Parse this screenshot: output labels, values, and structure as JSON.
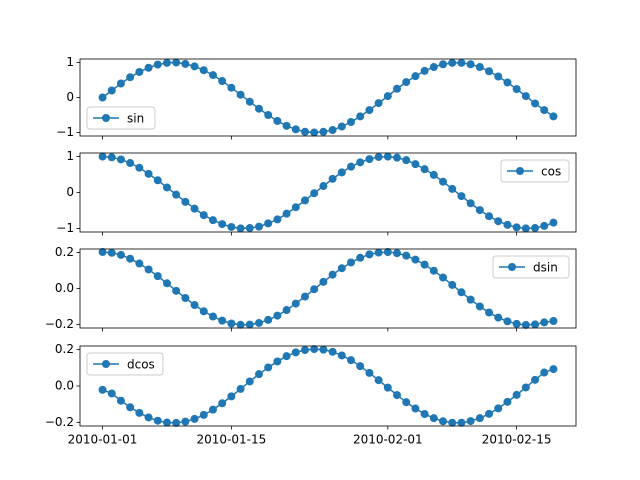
{
  "chart_data": [
    {
      "type": "line",
      "legend": "lower left",
      "x": [
        "2010-01-01",
        "2010-01-02",
        "2010-01-03",
        "2010-01-04",
        "2010-01-05",
        "2010-01-06",
        "2010-01-07",
        "2010-01-08",
        "2010-01-09",
        "2010-01-10",
        "2010-01-11",
        "2010-01-12",
        "2010-01-13",
        "2010-01-14",
        "2010-01-15",
        "2010-01-16",
        "2010-01-17",
        "2010-01-18",
        "2010-01-19",
        "2010-01-20",
        "2010-01-21",
        "2010-01-22",
        "2010-01-23",
        "2010-01-24",
        "2010-01-25",
        "2010-01-26",
        "2010-01-27",
        "2010-01-28",
        "2010-01-29",
        "2010-01-30",
        "2010-01-31",
        "2010-02-01",
        "2010-02-02",
        "2010-02-03",
        "2010-02-04",
        "2010-02-05",
        "2010-02-06",
        "2010-02-07",
        "2010-02-08",
        "2010-02-09",
        "2010-02-10",
        "2010-02-11",
        "2010-02-12",
        "2010-02-13",
        "2010-02-14",
        "2010-02-15",
        "2010-02-16",
        "2010-02-17",
        "2010-02-18",
        "2010-02-19"
      ],
      "xlim": [
        "2009-12-29T13:12:00Z",
        "2010-02-21T10:48:00Z"
      ],
      "xticks": [
        "2010-01-01",
        "2010-01-15",
        "2010-02-01",
        "2010-02-15"
      ],
      "ylim": [
        -1.1,
        1.1
      ],
      "yticks": [
        {
          "value": -1,
          "label": "−1"
        },
        0,
        1
      ],
      "series": [
        {
          "name": "sin",
          "color": "#1f77b4",
          "values": [
            0,
            0.2,
            0.4,
            0.58,
            0.73,
            0.85,
            0.94,
            0.99,
            1.0,
            0.96,
            0.89,
            0.78,
            0.64,
            0.47,
            0.28,
            0.08,
            -0.12,
            -0.32,
            -0.5,
            -0.67,
            -0.81,
            -0.91,
            -0.98,
            -1.0,
            -0.98,
            -0.93,
            -0.83,
            -0.7,
            -0.54,
            -0.36,
            -0.16,
            0.04,
            0.25,
            0.44,
            0.61,
            0.76,
            0.87,
            0.95,
            0.99,
            0.99,
            0.95,
            0.87,
            0.75,
            0.6,
            0.43,
            0.24,
            0.04,
            -0.17,
            -0.36,
            -0.54
          ]
        }
      ]
    },
    {
      "type": "line",
      "legend": "upper right",
      "x": [
        "2010-01-01",
        "2010-01-02",
        "2010-01-03",
        "2010-01-04",
        "2010-01-05",
        "2010-01-06",
        "2010-01-07",
        "2010-01-08",
        "2010-01-09",
        "2010-01-10",
        "2010-01-11",
        "2010-01-12",
        "2010-01-13",
        "2010-01-14",
        "2010-01-15",
        "2010-01-16",
        "2010-01-17",
        "2010-01-18",
        "2010-01-19",
        "2010-01-20",
        "2010-01-21",
        "2010-01-22",
        "2010-01-23",
        "2010-01-24",
        "2010-01-25",
        "2010-01-26",
        "2010-01-27",
        "2010-01-28",
        "2010-01-29",
        "2010-01-30",
        "2010-01-31",
        "2010-02-01",
        "2010-02-02",
        "2010-02-03",
        "2010-02-04",
        "2010-02-05",
        "2010-02-06",
        "2010-02-07",
        "2010-02-08",
        "2010-02-09",
        "2010-02-10",
        "2010-02-11",
        "2010-02-12",
        "2010-02-13",
        "2010-02-14",
        "2010-02-15",
        "2010-02-16",
        "2010-02-17",
        "2010-02-18",
        "2010-02-19"
      ],
      "xlim": [
        "2009-12-29T13:12:00Z",
        "2010-02-21T10:48:00Z"
      ],
      "xticks": [
        "2010-01-01",
        "2010-01-15",
        "2010-02-01",
        "2010-02-15"
      ],
      "ylim": [
        -1.1,
        1.1
      ],
      "yticks": [
        {
          "value": -1,
          "label": "−1"
        },
        0,
        1
      ],
      "series": [
        {
          "name": "cos",
          "color": "#1f77b4",
          "values": [
            1,
            0.98,
            0.92,
            0.82,
            0.69,
            0.52,
            0.34,
            0.14,
            -0.06,
            -0.26,
            -0.45,
            -0.63,
            -0.77,
            -0.88,
            -0.96,
            -1.0,
            -0.99,
            -0.95,
            -0.86,
            -0.75,
            -0.59,
            -0.41,
            -0.22,
            -0.02,
            0.18,
            0.38,
            0.56,
            0.72,
            0.84,
            0.93,
            0.99,
            1.0,
            0.97,
            0.9,
            0.79,
            0.65,
            0.49,
            0.3,
            0.1,
            -0.1,
            -0.3,
            -0.49,
            -0.66,
            -0.8,
            -0.9,
            -0.97,
            -1.0,
            -0.99,
            -0.93,
            -0.84
          ]
        }
      ]
    },
    {
      "type": "line",
      "legend": "upper right",
      "x": [
        "2010-01-01",
        "2010-01-02",
        "2010-01-03",
        "2010-01-04",
        "2010-01-05",
        "2010-01-06",
        "2010-01-07",
        "2010-01-08",
        "2010-01-09",
        "2010-01-10",
        "2010-01-11",
        "2010-01-12",
        "2010-01-13",
        "2010-01-14",
        "2010-01-15",
        "2010-01-16",
        "2010-01-17",
        "2010-01-18",
        "2010-01-19",
        "2010-01-20",
        "2010-01-21",
        "2010-01-22",
        "2010-01-23",
        "2010-01-24",
        "2010-01-25",
        "2010-01-26",
        "2010-01-27",
        "2010-01-28",
        "2010-01-29",
        "2010-01-30",
        "2010-01-31",
        "2010-02-01",
        "2010-02-02",
        "2010-02-03",
        "2010-02-04",
        "2010-02-05",
        "2010-02-06",
        "2010-02-07",
        "2010-02-08",
        "2010-02-09",
        "2010-02-10",
        "2010-02-11",
        "2010-02-12",
        "2010-02-13",
        "2010-02-14",
        "2010-02-15",
        "2010-02-16",
        "2010-02-17",
        "2010-02-18",
        "2010-02-19"
      ],
      "xlim": [
        "2009-12-29T13:12:00Z",
        "2010-02-21T10:48:00Z"
      ],
      "xticks": [
        "2010-01-01",
        "2010-01-15",
        "2010-02-01",
        "2010-02-15"
      ],
      "ylim": [
        -0.22,
        0.22
      ],
      "yticks": [
        {
          "value": -0.2,
          "label": "−0.2"
        },
        {
          "value": 0,
          "label": "0.0"
        },
        0.2
      ],
      "series": [
        {
          "name": "dsin",
          "color": "#1f77b4",
          "values": [
            0.203,
            0.199,
            0.187,
            0.166,
            0.139,
            0.106,
            0.069,
            0.029,
            -0.013,
            -0.053,
            -0.092,
            -0.127,
            -0.156,
            -0.179,
            -0.195,
            -0.202,
            -0.201,
            -0.192,
            -0.175,
            -0.151,
            -0.12,
            -0.084,
            -0.045,
            -0.004,
            0.037,
            0.077,
            0.113,
            0.145,
            0.171,
            0.19,
            0.2,
            0.203,
            0.197,
            0.183,
            0.161,
            0.133,
            0.099,
            0.061,
            0.02,
            -0.021,
            -0.062,
            -0.1,
            -0.134,
            -0.162,
            -0.183,
            -0.197,
            -0.203,
            -0.2,
            -0.189,
            -0.181
          ]
        }
      ]
    },
    {
      "type": "line",
      "legend": "upper left",
      "x": [
        "2010-01-01",
        "2010-01-02",
        "2010-01-03",
        "2010-01-04",
        "2010-01-05",
        "2010-01-06",
        "2010-01-07",
        "2010-01-08",
        "2010-01-09",
        "2010-01-10",
        "2010-01-11",
        "2010-01-12",
        "2010-01-13",
        "2010-01-14",
        "2010-01-15",
        "2010-01-16",
        "2010-01-17",
        "2010-01-18",
        "2010-01-19",
        "2010-01-20",
        "2010-01-21",
        "2010-01-22",
        "2010-01-23",
        "2010-01-24",
        "2010-01-25",
        "2010-01-26",
        "2010-01-27",
        "2010-01-28",
        "2010-01-29",
        "2010-01-30",
        "2010-01-31",
        "2010-02-01",
        "2010-02-02",
        "2010-02-03",
        "2010-02-04",
        "2010-02-05",
        "2010-02-06",
        "2010-02-07",
        "2010-02-08",
        "2010-02-09",
        "2010-02-10",
        "2010-02-11",
        "2010-02-12",
        "2010-02-13",
        "2010-02-14",
        "2010-02-15",
        "2010-02-16",
        "2010-02-17",
        "2010-02-18",
        "2010-02-19"
      ],
      "xlim": [
        "2009-12-29T13:12:00Z",
        "2010-02-21T10:48:00Z"
      ],
      "xticks": [
        "2010-01-01",
        "2010-01-15",
        "2010-02-01",
        "2010-02-15"
      ],
      "ylim": [
        -0.22,
        0.22
      ],
      "yticks": [
        {
          "value": -0.2,
          "label": "−0.2"
        },
        {
          "value": 0,
          "label": "0.0"
        },
        0.2
      ],
      "series": [
        {
          "name": "dcos",
          "color": "#1f77b4",
          "values": [
            -0.021,
            -0.041,
            -0.081,
            -0.117,
            -0.148,
            -0.173,
            -0.191,
            -0.201,
            -0.203,
            -0.196,
            -0.181,
            -0.159,
            -0.13,
            -0.095,
            -0.057,
            -0.016,
            0.025,
            0.065,
            0.102,
            0.135,
            0.164,
            0.185,
            0.198,
            0.203,
            0.2,
            0.188,
            0.168,
            0.142,
            0.109,
            0.072,
            0.032,
            -0.009,
            -0.05,
            -0.089,
            -0.124,
            -0.154,
            -0.177,
            -0.194,
            -0.202,
            -0.202,
            -0.193,
            -0.177,
            -0.153,
            -0.123,
            -0.087,
            -0.049,
            -0.008,
            0.034,
            0.074,
            0.093
          ]
        }
      ]
    }
  ]
}
